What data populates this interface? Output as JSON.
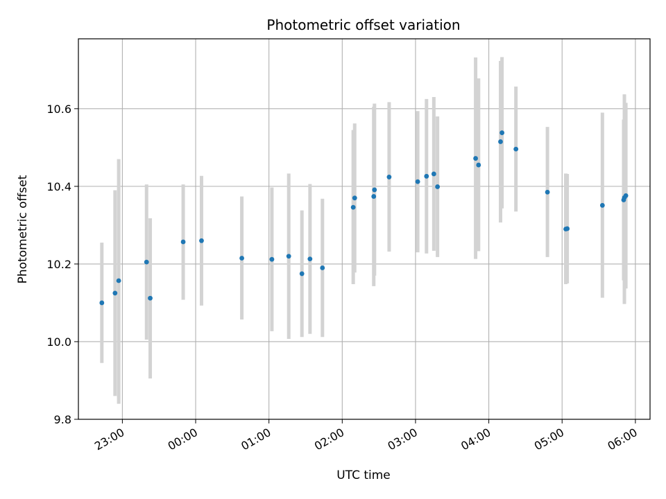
{
  "chart_data": {
    "type": "scatter",
    "title": "Photometric offset variation",
    "xlabel": "UTC time",
    "ylabel": "Photometric offset",
    "xlim_hours": [
      -1.6,
      6.2
    ],
    "ylim": [
      9.8,
      10.78
    ],
    "grid": true,
    "x_ticks": [
      {
        "hours": -1,
        "label": "23:00"
      },
      {
        "hours": 0,
        "label": "00:00"
      },
      {
        "hours": 1,
        "label": "01:00"
      },
      {
        "hours": 2,
        "label": "02:00"
      },
      {
        "hours": 3,
        "label": "03:00"
      },
      {
        "hours": 4,
        "label": "04:00"
      },
      {
        "hours": 5,
        "label": "05:00"
      },
      {
        "hours": 6,
        "label": "06:00"
      }
    ],
    "y_ticks": [
      {
        "value": 9.8,
        "label": "9.8"
      },
      {
        "value": 10.0,
        "label": "10.0"
      },
      {
        "value": 10.2,
        "label": "10.2"
      },
      {
        "value": 10.4,
        "label": "10.4"
      },
      {
        "value": 10.6,
        "label": "10.6"
      }
    ],
    "marker_color": "#1f77b4",
    "errorbar_color": "#d3d3d3",
    "points": [
      {
        "time": "22:43",
        "hours": -1.28,
        "value": 10.1,
        "low": 9.945,
        "high": 10.255
      },
      {
        "time": "22:54",
        "hours": -1.1,
        "value": 10.125,
        "low": 9.86,
        "high": 10.39
      },
      {
        "time": "22:57",
        "hours": -1.05,
        "value": 10.157,
        "low": 9.84,
        "high": 10.47
      },
      {
        "time": "23:20",
        "hours": -0.67,
        "value": 10.205,
        "low": 10.005,
        "high": 10.405
      },
      {
        "time": "23:23",
        "hours": -0.62,
        "value": 10.112,
        "low": 9.905,
        "high": 10.318
      },
      {
        "time": "23:50",
        "hours": -0.17,
        "value": 10.257,
        "low": 10.108,
        "high": 10.405
      },
      {
        "time": "00:05",
        "hours": 0.08,
        "value": 10.26,
        "low": 10.093,
        "high": 10.427
      },
      {
        "time": "00:38",
        "hours": 0.63,
        "value": 10.215,
        "low": 10.057,
        "high": 10.374
      },
      {
        "time": "01:03",
        "hours": 1.04,
        "value": 10.212,
        "low": 10.027,
        "high": 10.397
      },
      {
        "time": "01:16",
        "hours": 1.27,
        "value": 10.22,
        "low": 10.007,
        "high": 10.433
      },
      {
        "time": "01:27",
        "hours": 1.45,
        "value": 10.175,
        "low": 10.012,
        "high": 10.338
      },
      {
        "time": "01:34",
        "hours": 1.56,
        "value": 10.213,
        "low": 10.02,
        "high": 10.406
      },
      {
        "time": "01:44",
        "hours": 1.73,
        "value": 10.19,
        "low": 10.012,
        "high": 10.368
      },
      {
        "time": "02:09",
        "hours": 2.15,
        "value": 10.346,
        "low": 10.148,
        "high": 10.545
      },
      {
        "time": "02:10",
        "hours": 2.17,
        "value": 10.37,
        "low": 10.178,
        "high": 10.562
      },
      {
        "time": "02:26",
        "hours": 2.43,
        "value": 10.374,
        "low": 10.143,
        "high": 10.605
      },
      {
        "time": "02:27",
        "hours": 2.44,
        "value": 10.391,
        "low": 10.17,
        "high": 10.613
      },
      {
        "time": "02:38",
        "hours": 2.64,
        "value": 10.424,
        "low": 10.232,
        "high": 10.617
      },
      {
        "time": "03:02",
        "hours": 3.03,
        "value": 10.412,
        "low": 10.23,
        "high": 10.594
      },
      {
        "time": "03:09",
        "hours": 3.15,
        "value": 10.426,
        "low": 10.227,
        "high": 10.625
      },
      {
        "time": "03:15",
        "hours": 3.25,
        "value": 10.432,
        "low": 10.234,
        "high": 10.63
      },
      {
        "time": "03:18",
        "hours": 3.3,
        "value": 10.399,
        "low": 10.218,
        "high": 10.58
      },
      {
        "time": "03:49",
        "hours": 3.82,
        "value": 10.472,
        "low": 10.213,
        "high": 10.732
      },
      {
        "time": "03:52",
        "hours": 3.86,
        "value": 10.455,
        "low": 10.233,
        "high": 10.678
      },
      {
        "time": "04:10",
        "hours": 4.16,
        "value": 10.515,
        "low": 10.307,
        "high": 10.723
      },
      {
        "time": "04:11",
        "hours": 4.18,
        "value": 10.538,
        "low": 10.343,
        "high": 10.733
      },
      {
        "time": "04:22",
        "hours": 4.37,
        "value": 10.496,
        "low": 10.335,
        "high": 10.657
      },
      {
        "time": "04:48",
        "hours": 4.8,
        "value": 10.385,
        "low": 10.218,
        "high": 10.553
      },
      {
        "time": "05:03",
        "hours": 5.05,
        "value": 10.29,
        "low": 10.148,
        "high": 10.433
      },
      {
        "time": "05:04",
        "hours": 5.07,
        "value": 10.291,
        "low": 10.15,
        "high": 10.432
      },
      {
        "time": "05:33",
        "hours": 5.55,
        "value": 10.351,
        "low": 10.113,
        "high": 10.59
      },
      {
        "time": "05:51",
        "hours": 5.84,
        "value": 10.365,
        "low": 10.158,
        "high": 10.572
      },
      {
        "time": "05:51",
        "hours": 5.85,
        "value": 10.371,
        "low": 10.097,
        "high": 10.637
      },
      {
        "time": "05:52",
        "hours": 5.87,
        "value": 10.376,
        "low": 10.137,
        "high": 10.615
      }
    ]
  }
}
